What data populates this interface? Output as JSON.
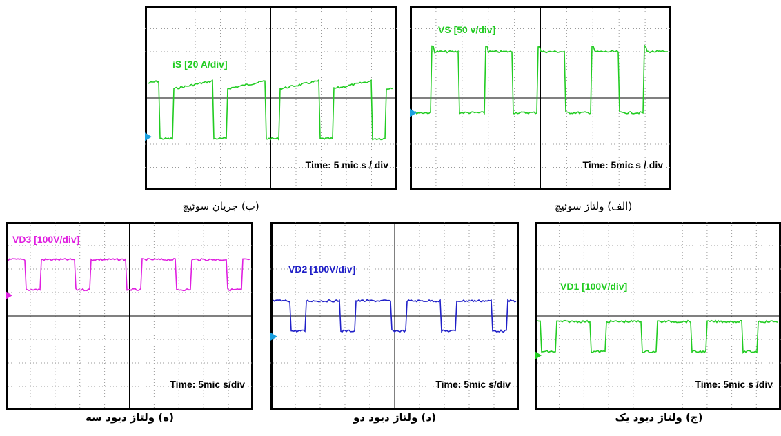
{
  "panels": [
    {
      "label": "iS [20 A/div]",
      "time": "Time: 5 mic s / div",
      "caption": "(ب) جریان سوئیچ",
      "color": "#22cc22"
    },
    {
      "label": "VS [50 v/div]",
      "time": "Time: 5mic s / div",
      "caption": "(الف) ولتاژ سوئیچ",
      "color": "#22cc22"
    },
    {
      "label": "VD3 [100V/div]",
      "time": "Time: 5mic s/div",
      "caption": "(ه) ولتاژ دیود سه",
      "color": "#e020e0"
    },
    {
      "label": "VD2 [100V/div]",
      "time": "Time: 5mic s/div",
      "caption": "(د) ولتاژ دیود دو",
      "color": "#2020c8"
    },
    {
      "label": "VD1 [100V/div]",
      "time": "Time: 5mic s /div",
      "caption": "(ج) ولتاژ دیود یک",
      "color": "#22cc22"
    }
  ]
}
